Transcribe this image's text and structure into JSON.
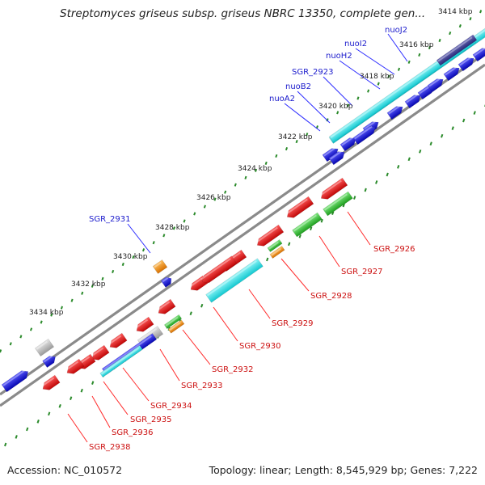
{
  "title": "Streptomyces griseus subsp. griseus NBRC 13350, complete gen...",
  "footer": {
    "accession": "Accession: NC_010572",
    "summary": "Topology: linear; Length: 8,545,929 bp; Genes: 7,222"
  },
  "ruler_ticks": [
    "3414 kbp",
    "3416 kbp",
    "3418 kbp",
    "3420 kbp",
    "3422 kbp",
    "3424 kbp",
    "3426 kbp",
    "3428 kbp",
    "3430 kbp",
    "3432 kbp",
    "3434 kbp"
  ],
  "genes_top": [
    "nuoJ2",
    "nuoI2",
    "nuoH2",
    "SGR_2923",
    "nuoB2",
    "nuoA2",
    "SGR_2931"
  ],
  "genes_bottom": [
    "SGR_2926",
    "SGR_2927",
    "SGR_2928",
    "SGR_2929",
    "SGR_2930",
    "SGR_2932",
    "SGR_2933",
    "SGR_2934",
    "SGR_2935",
    "SGR_2936",
    "SGR_2938"
  ],
  "colors": {
    "forward_gene": "#0a0ae0",
    "reverse_gene": "#e01010",
    "cds_feature": "#22e0e6",
    "rna_feature": "#37c837",
    "other_feature": "#f09018",
    "unknown_feature": "#b8b8b8",
    "label_forward": "#1a1acc",
    "label_reverse": "#cc1010",
    "backbone": "#8a8a8a",
    "dotted_track": "#2a8a2a"
  }
}
